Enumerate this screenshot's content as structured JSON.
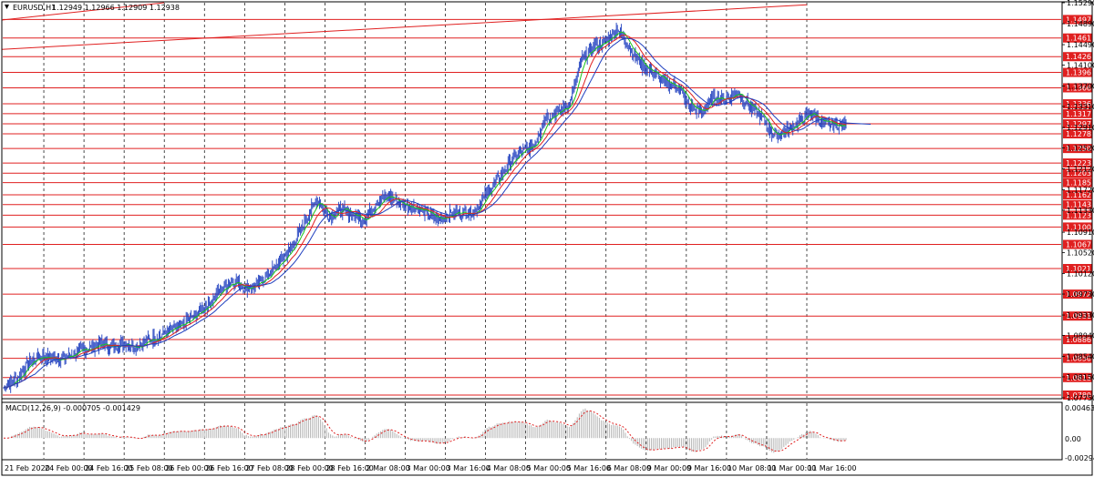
{
  "header": {
    "symbol": "EURUSD,H1",
    "ohlc": "1.12949 1.12966 1.12909 1.12938"
  },
  "colors": {
    "candles": "#1f3fbf",
    "ma_fast": "#19c419",
    "ma_mid": "#e02020",
    "ma_slow": "#1f3fbf",
    "levels": "#e02020",
    "grid": "#000000",
    "macd_hist": "#b4b4b4",
    "macd_signal": "#e02020"
  },
  "chart_data": {
    "type": "line",
    "title": "EURUSD,H1",
    "grid": true,
    "price_axis_labels": [
      "1.15290",
      "1.14890",
      "1.14490",
      "1.14100",
      "1.13700",
      "1.13310",
      "1.12910",
      "1.12520",
      "1.12120",
      "1.11720",
      "1.11330",
      "1.10910",
      "1.10520",
      "1.10120",
      "1.09730",
      "1.09330",
      "1.08940",
      "1.08540",
      "1.08150",
      "1.07750"
    ],
    "ylim": [
      1.0775,
      1.1529
    ],
    "level_labels": [
      "1.14970",
      "1.14617",
      "1.14261",
      "1.13960",
      "1.13666",
      "1.13361",
      "1.13173",
      "1.12979",
      "1.12788",
      "1.12508",
      "1.12231",
      "1.12037",
      "1.11857",
      "1.11625",
      "1.11438",
      "1.11236",
      "1.11009",
      "1.10677",
      "1.10217",
      "1.09729",
      "1.09310",
      "1.08861",
      "1.08504",
      "1.08136",
      "1.07803"
    ],
    "levels": [
      1.1497,
      1.14617,
      1.14261,
      1.1396,
      1.13666,
      1.13361,
      1.13173,
      1.12979,
      1.12788,
      1.12508,
      1.12231,
      1.12037,
      1.11857,
      1.11625,
      1.11438,
      1.11236,
      1.11009,
      1.10677,
      1.10217,
      1.09729,
      1.0931,
      1.08861,
      1.08504,
      1.08136,
      1.07803
    ],
    "time_labels": [
      "21 Feb 2020",
      "24 Feb 00:00",
      "24 Feb 16:00",
      "25 Feb 08:00",
      "26 Feb 00:00",
      "26 Feb 16:00",
      "27 Feb 08:00",
      "28 Feb 00:00",
      "28 Feb 16:00",
      "2 Mar 08:00",
      "3 Mar 00:00",
      "3 Mar 16:00",
      "4 Mar 08:00",
      "5 Mar 00:00",
      "5 Mar 16:00",
      "6 Mar 08:00",
      "9 Mar 00:00",
      "9 Mar 16:00",
      "10 Mar 08:00",
      "11 Mar 00:00",
      "11 Mar 16:00"
    ],
    "price_series": [
      1.0795,
      1.081,
      1.084,
      1.0855,
      1.085,
      1.085,
      1.0862,
      1.0868,
      1.0878,
      1.0872,
      1.088,
      1.0874,
      1.0885,
      1.0893,
      1.0905,
      1.0915,
      1.0935,
      1.0955,
      1.098,
      1.1,
      1.0985,
      1.099,
      1.101,
      1.1035,
      1.1065,
      1.111,
      1.1155,
      1.112,
      1.1135,
      1.1125,
      1.1115,
      1.115,
      1.116,
      1.1145,
      1.114,
      1.113,
      1.1115,
      1.1125,
      1.113,
      1.1128,
      1.116,
      1.119,
      1.1222,
      1.1245,
      1.1255,
      1.131,
      1.132,
      1.1335,
      1.142,
      1.1445,
      1.1455,
      1.148,
      1.1445,
      1.141,
      1.1395,
      1.1375,
      1.137,
      1.133,
      1.132,
      1.135,
      1.1345,
      1.136,
      1.133,
      1.131,
      1.1275,
      1.1285,
      1.13,
      1.132,
      1.13,
      1.1295,
      1.1294
    ],
    "series": [
      {
        "name": "",
        "values": []
      }
    ],
    "macd": {
      "label": "MACD(12,26,9) -0.000705 -0.001429",
      "axis_labels": [
        "0.004633",
        "0.00",
        "-0.002947"
      ],
      "ylim": [
        -0.002947,
        0.004633
      ]
    }
  }
}
